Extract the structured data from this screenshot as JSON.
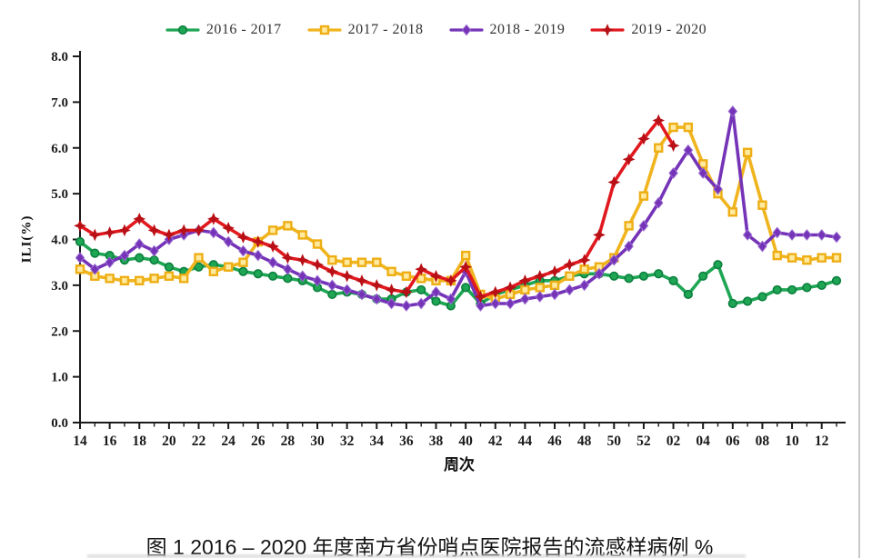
{
  "figure_caption": "图 1 2016 – 2020 年度南方省份哨点医院报告的流感样病例 %",
  "chart_data": {
    "type": "line",
    "title": "",
    "xlabel": "周次",
    "ylabel": "ILI(%)",
    "ylim": [
      0,
      8
    ],
    "yticks": [
      "0.0",
      "1.0",
      "2.0",
      "3.0",
      "4.0",
      "5.0",
      "6.0",
      "7.0",
      "8.0"
    ],
    "xtick_labels_every": 2,
    "grid": false,
    "legend_position": "top",
    "categories": [
      "14",
      "15",
      "16",
      "17",
      "18",
      "19",
      "20",
      "21",
      "22",
      "23",
      "24",
      "25",
      "26",
      "27",
      "28",
      "29",
      "30",
      "31",
      "32",
      "33",
      "34",
      "35",
      "36",
      "37",
      "38",
      "39",
      "40",
      "41",
      "42",
      "43",
      "44",
      "45",
      "46",
      "47",
      "48",
      "49",
      "50",
      "51",
      "52",
      "01",
      "02",
      "03",
      "04",
      "05",
      "06",
      "07",
      "08",
      "09",
      "10",
      "11",
      "12",
      "13"
    ],
    "series": [
      {
        "name": "2016 - 2017",
        "color": "#1ea654",
        "marker": "circle",
        "marker_fill": "#1ea654",
        "marker_stroke": "#0c7f3e",
        "values": [
          3.95,
          3.7,
          3.65,
          3.55,
          3.6,
          3.55,
          3.4,
          3.3,
          3.4,
          3.45,
          3.4,
          3.3,
          3.25,
          3.2,
          3.15,
          3.1,
          2.95,
          2.8,
          2.85,
          2.8,
          2.7,
          2.7,
          2.85,
          2.9,
          2.65,
          2.55,
          2.95,
          2.6,
          2.8,
          2.9,
          3.0,
          3.1,
          3.1,
          3.2,
          3.25,
          3.25,
          3.2,
          3.15,
          3.2,
          3.25,
          3.1,
          2.8,
          3.2,
          3.45,
          2.6,
          2.65,
          2.75,
          2.9,
          2.9,
          2.95,
          3.0,
          3.1
        ]
      },
      {
        "name": "2017 - 2018",
        "color": "#f0b41e",
        "marker": "square",
        "marker_fill": "#ffeaa0",
        "marker_stroke": "#eeae14",
        "values": [
          3.35,
          3.2,
          3.15,
          3.1,
          3.1,
          3.15,
          3.2,
          3.15,
          3.6,
          3.3,
          3.4,
          3.5,
          3.95,
          4.2,
          4.3,
          4.1,
          3.9,
          3.55,
          3.5,
          3.5,
          3.5,
          3.3,
          3.2,
          3.15,
          3.1,
          3.1,
          3.65,
          2.8,
          2.7,
          2.8,
          2.9,
          2.95,
          3.0,
          3.2,
          3.35,
          3.4,
          3.6,
          4.3,
          4.95,
          6.0,
          6.45,
          6.45,
          5.65,
          5.0,
          4.6,
          5.9,
          4.75,
          3.65,
          3.6,
          3.55,
          3.6,
          3.6
        ]
      },
      {
        "name": "2018 - 2019",
        "color": "#7534b8",
        "marker": "diamond",
        "marker_fill": "#7534b8",
        "marker_stroke": "#9a6ad1",
        "values": [
          3.6,
          3.35,
          3.5,
          3.65,
          3.9,
          3.75,
          4.0,
          4.1,
          4.2,
          4.15,
          3.95,
          3.75,
          3.65,
          3.5,
          3.35,
          3.2,
          3.1,
          3.0,
          2.9,
          2.8,
          2.7,
          2.6,
          2.55,
          2.6,
          2.85,
          2.7,
          3.3,
          2.55,
          2.6,
          2.6,
          2.7,
          2.75,
          2.8,
          2.9,
          3.0,
          3.25,
          3.55,
          3.85,
          4.3,
          4.8,
          5.45,
          5.95,
          5.45,
          5.1,
          6.8,
          4.1,
          3.85,
          4.15,
          4.1,
          4.1,
          4.1,
          4.05
        ]
      },
      {
        "name": "2019 - 2020",
        "color": "#e0191f",
        "marker": "star4",
        "marker_fill": "#b81016",
        "marker_stroke": "#b81016",
        "values": [
          4.3,
          4.1,
          4.15,
          4.2,
          4.45,
          4.2,
          4.1,
          4.2,
          4.2,
          4.45,
          4.25,
          4.05,
          3.95,
          3.85,
          3.6,
          3.55,
          3.45,
          3.3,
          3.2,
          3.1,
          3.0,
          2.9,
          2.85,
          3.35,
          3.2,
          3.1,
          3.4,
          2.75,
          2.85,
          2.95,
          3.1,
          3.2,
          3.3,
          3.45,
          3.55,
          4.1,
          5.25,
          5.75,
          6.2,
          6.6,
          6.05,
          null,
          null,
          null,
          null,
          null,
          null,
          null,
          null,
          null,
          null,
          null
        ]
      }
    ]
  }
}
